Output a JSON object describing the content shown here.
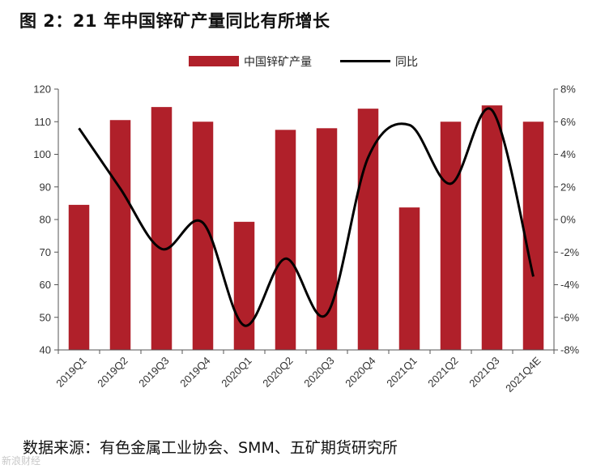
{
  "title": "图 2：21 年中国锌矿产量同比有所增长",
  "source": "数据来源：有色金属工业协会、SMM、五矿期货研究所",
  "watermark": "新浪财经",
  "colors": {
    "bar": "#b0202a",
    "line": "#000000",
    "axis": "#555555"
  },
  "chart_data": {
    "type": "bar",
    "categories": [
      "2019Q1",
      "2019Q2",
      "2019Q3",
      "2019Q4",
      "2020Q1",
      "2020Q2",
      "2020Q3",
      "2020Q4",
      "2021Q1",
      "2021Q2",
      "2021Q3",
      "2021Q4E"
    ],
    "series": [
      {
        "name": "中国锌矿产量",
        "type": "bar",
        "axis": "left",
        "values": [
          84.5,
          110.5,
          114.5,
          110,
          79.3,
          107.5,
          108,
          114,
          83.7,
          110,
          115,
          110
        ]
      },
      {
        "name": "同比",
        "type": "line",
        "axis": "right",
        "values": [
          5.6,
          1.9,
          -1.8,
          -0.2,
          -6.5,
          -2.4,
          -5.8,
          3.8,
          5.8,
          2.2,
          6.7,
          -3.5
        ]
      }
    ],
    "ylim_left": [
      40,
      120
    ],
    "yticks_left": [
      "120",
      "110",
      "100",
      "90",
      "80",
      "70",
      "60",
      "50",
      "40"
    ],
    "ylim_right": [
      -8,
      8
    ],
    "yticks_right": [
      "8%",
      "6%",
      "4%",
      "2%",
      "0%",
      "-2%",
      "-4%",
      "-6%",
      "-8%"
    ],
    "legend_position": "top"
  }
}
